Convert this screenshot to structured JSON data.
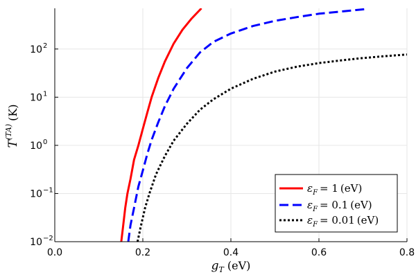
{
  "chart_data": {
    "type": "line",
    "title": "",
    "xlabel": {
      "var": "g",
      "sub": "T",
      "unit": "(eV)"
    },
    "ylabel": {
      "var": "T",
      "sup": "(TA)",
      "unit": "(K)"
    },
    "xlim": [
      0.0,
      0.8
    ],
    "ylim": [
      0.01,
      700
    ],
    "yscale": "log",
    "grid": true,
    "legend_position": "bottom-right",
    "x_ticks": [
      "0.0",
      "0.2",
      "0.4",
      "0.6",
      "0.8"
    ],
    "y_ticks": [
      {
        "base": "10",
        "exp": "−2"
      },
      {
        "base": "10",
        "exp": "−1"
      },
      {
        "base": "10",
        "exp": "0"
      },
      {
        "base": "10",
        "exp": "1"
      },
      {
        "base": "10",
        "exp": "2"
      }
    ],
    "series": [
      {
        "legend_var": "ε",
        "legend_sub": "F",
        "legend_value": "= 1",
        "legend_unit": "(eV)",
        "color": "#ff0000",
        "style": "solid",
        "points": [
          [
            0.151,
            0.01
          ],
          [
            0.155,
            0.02
          ],
          [
            0.16,
            0.05
          ],
          [
            0.165,
            0.1
          ],
          [
            0.172,
            0.2
          ],
          [
            0.18,
            0.5
          ],
          [
            0.19,
            1
          ],
          [
            0.2,
            2.2
          ],
          [
            0.21,
            4.7
          ],
          [
            0.22,
            10
          ],
          [
            0.235,
            25
          ],
          [
            0.25,
            55
          ],
          [
            0.27,
            130
          ],
          [
            0.29,
            250
          ],
          [
            0.31,
            420
          ],
          [
            0.333,
            700
          ]
        ]
      },
      {
        "legend_var": "ε",
        "legend_sub": "F",
        "legend_value": "= 0.1",
        "legend_unit": "(eV)",
        "color": "#0000ff",
        "style": "dashed",
        "points": [
          [
            0.167,
            0.01
          ],
          [
            0.172,
            0.022
          ],
          [
            0.18,
            0.05
          ],
          [
            0.19,
            0.14
          ],
          [
            0.2,
            0.3
          ],
          [
            0.21,
            0.65
          ],
          [
            0.22,
            1.3
          ],
          [
            0.235,
            3
          ],
          [
            0.25,
            6.5
          ],
          [
            0.27,
            15
          ],
          [
            0.3,
            40
          ],
          [
            0.33,
            85
          ],
          [
            0.36,
            140
          ],
          [
            0.4,
            210
          ],
          [
            0.45,
            300
          ],
          [
            0.5,
            385
          ],
          [
            0.55,
            460
          ],
          [
            0.6,
            540
          ],
          [
            0.65,
            600
          ],
          [
            0.71,
            680
          ]
        ]
      },
      {
        "legend_var": "ε",
        "legend_sub": "F",
        "legend_value": "= 0.01",
        "legend_unit": "(eV)",
        "color": "#000000",
        "style": "dotted",
        "points": [
          [
            0.188,
            0.01
          ],
          [
            0.195,
            0.02
          ],
          [
            0.205,
            0.05
          ],
          [
            0.215,
            0.1
          ],
          [
            0.23,
            0.25
          ],
          [
            0.25,
            0.6
          ],
          [
            0.27,
            1.25
          ],
          [
            0.3,
            2.8
          ],
          [
            0.33,
            5.5
          ],
          [
            0.36,
            9
          ],
          [
            0.4,
            15
          ],
          [
            0.45,
            24
          ],
          [
            0.5,
            34
          ],
          [
            0.55,
            43
          ],
          [
            0.6,
            51
          ],
          [
            0.65,
            58
          ],
          [
            0.7,
            65
          ],
          [
            0.75,
            71
          ],
          [
            0.8,
            77
          ]
        ]
      }
    ]
  }
}
